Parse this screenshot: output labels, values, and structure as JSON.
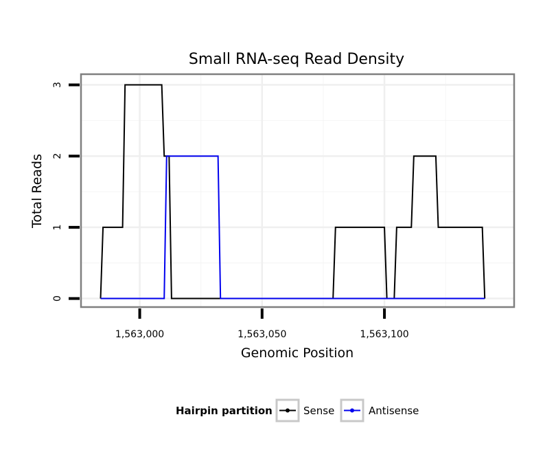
{
  "chart_data": {
    "type": "line",
    "title": "Small RNA-seq Read Density",
    "xlabel": "Genomic Position",
    "ylabel": "Total Reads",
    "xlim": [
      1562976,
      1563153
    ],
    "ylim": [
      -0.12,
      3.15
    ],
    "x_ticks": [
      1563000,
      1563050,
      1563100
    ],
    "x_tick_labels": [
      "1,563,000",
      "1,563,050",
      "1,563,100"
    ],
    "y_ticks": [
      0,
      1,
      2,
      3
    ],
    "y_tick_labels": [
      "0",
      "1",
      "2",
      "3"
    ],
    "grid": true,
    "legend": {
      "title": "Hairpin partition",
      "position": "bottom",
      "entries": [
        "Sense",
        "Antisense"
      ]
    },
    "series": [
      {
        "name": "Sense",
        "color": "#000000",
        "x": [
          1562984,
          1562985,
          1562993,
          1562994,
          1563009,
          1563010,
          1563011,
          1563012,
          1563013,
          1563079,
          1563080,
          1563100,
          1563101,
          1563104,
          1563105,
          1563111,
          1563112,
          1563121,
          1563122,
          1563140,
          1563141
        ],
        "y": [
          0,
          1,
          1,
          3,
          3,
          2,
          2,
          2,
          0,
          0,
          1,
          1,
          0,
          0,
          1,
          1,
          2,
          2,
          1,
          1,
          0
        ]
      },
      {
        "name": "Antisense",
        "color": "#0000ee",
        "x": [
          1562984,
          1563010,
          1563011,
          1563032,
          1563033,
          1563141
        ],
        "y": [
          0,
          0,
          2,
          2,
          0,
          0
        ]
      }
    ]
  }
}
